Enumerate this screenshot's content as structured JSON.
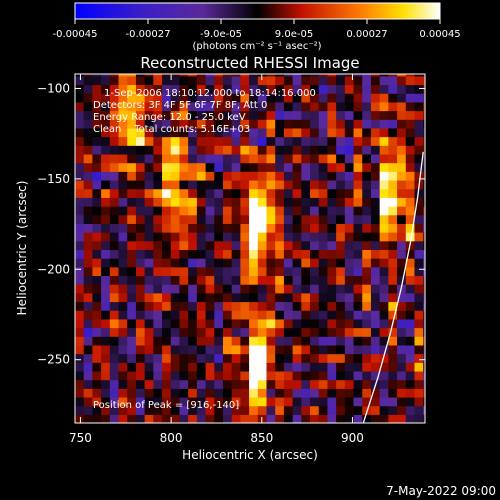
{
  "colorbar": {
    "tick_labels": [
      "-0.00045",
      "-0.00027",
      "-9.0e-05",
      "9.0e-05",
      "0.00027",
      "0.00045"
    ],
    "tick_values": [
      -0.00045,
      -0.00027,
      -9e-05,
      9e-05,
      0.00027,
      0.00045
    ],
    "range": [
      -0.00045,
      0.00045
    ],
    "units_label": "(photons cm⁻² s⁻¹ asec⁻²)",
    "colormap": "blue-purple-black-red-yellow-white"
  },
  "chart_data": {
    "type": "heatmap",
    "title": "Reconstructed RHESSI Image",
    "xlabel": "Heliocentric X (arcsec)",
    "ylabel": "Heliocentric Y (arcsec)",
    "xlim": [
      747,
      940
    ],
    "ylim": [
      -285,
      -92
    ],
    "x_ticks": [
      750,
      800,
      850,
      900
    ],
    "y_ticks": [
      -100,
      -150,
      -200,
      -250
    ],
    "x_tick_labels": [
      "750",
      "800",
      "850",
      "900"
    ],
    "y_tick_labels": [
      "−100",
      "−150",
      "−200",
      "−250"
    ],
    "limb_curve": [
      [
        906,
        -285
      ],
      [
        914,
        -260
      ],
      [
        921,
        -235
      ],
      [
        927,
        -210
      ],
      [
        932,
        -185
      ],
      [
        936,
        -160
      ],
      [
        939,
        -135
      ]
    ],
    "bright_sources": [
      {
        "x": 846,
        "y": -175,
        "peak": 1.0
      },
      {
        "x": 845,
        "y": -255,
        "peak": 0.95
      },
      {
        "x": 920,
        "y": -160,
        "peak": 0.85
      },
      {
        "x": 800,
        "y": -155,
        "peak": 0.75
      },
      {
        "x": 775,
        "y": -115,
        "peak": 0.7
      }
    ],
    "annotations": [
      "1-Sep-2006 18:10:12.000 to 18:14:16.000",
      "Detectors: 3F 4F 5F 6F 7F 8F, Att 0",
      "Energy Range: 12.0 - 25.0 keV",
      "Clean    Total counts: 5.16E+03",
      "Position of Peak = [916,-140]"
    ]
  },
  "footer": {
    "timestamp": "7-May-2022 09:00"
  }
}
